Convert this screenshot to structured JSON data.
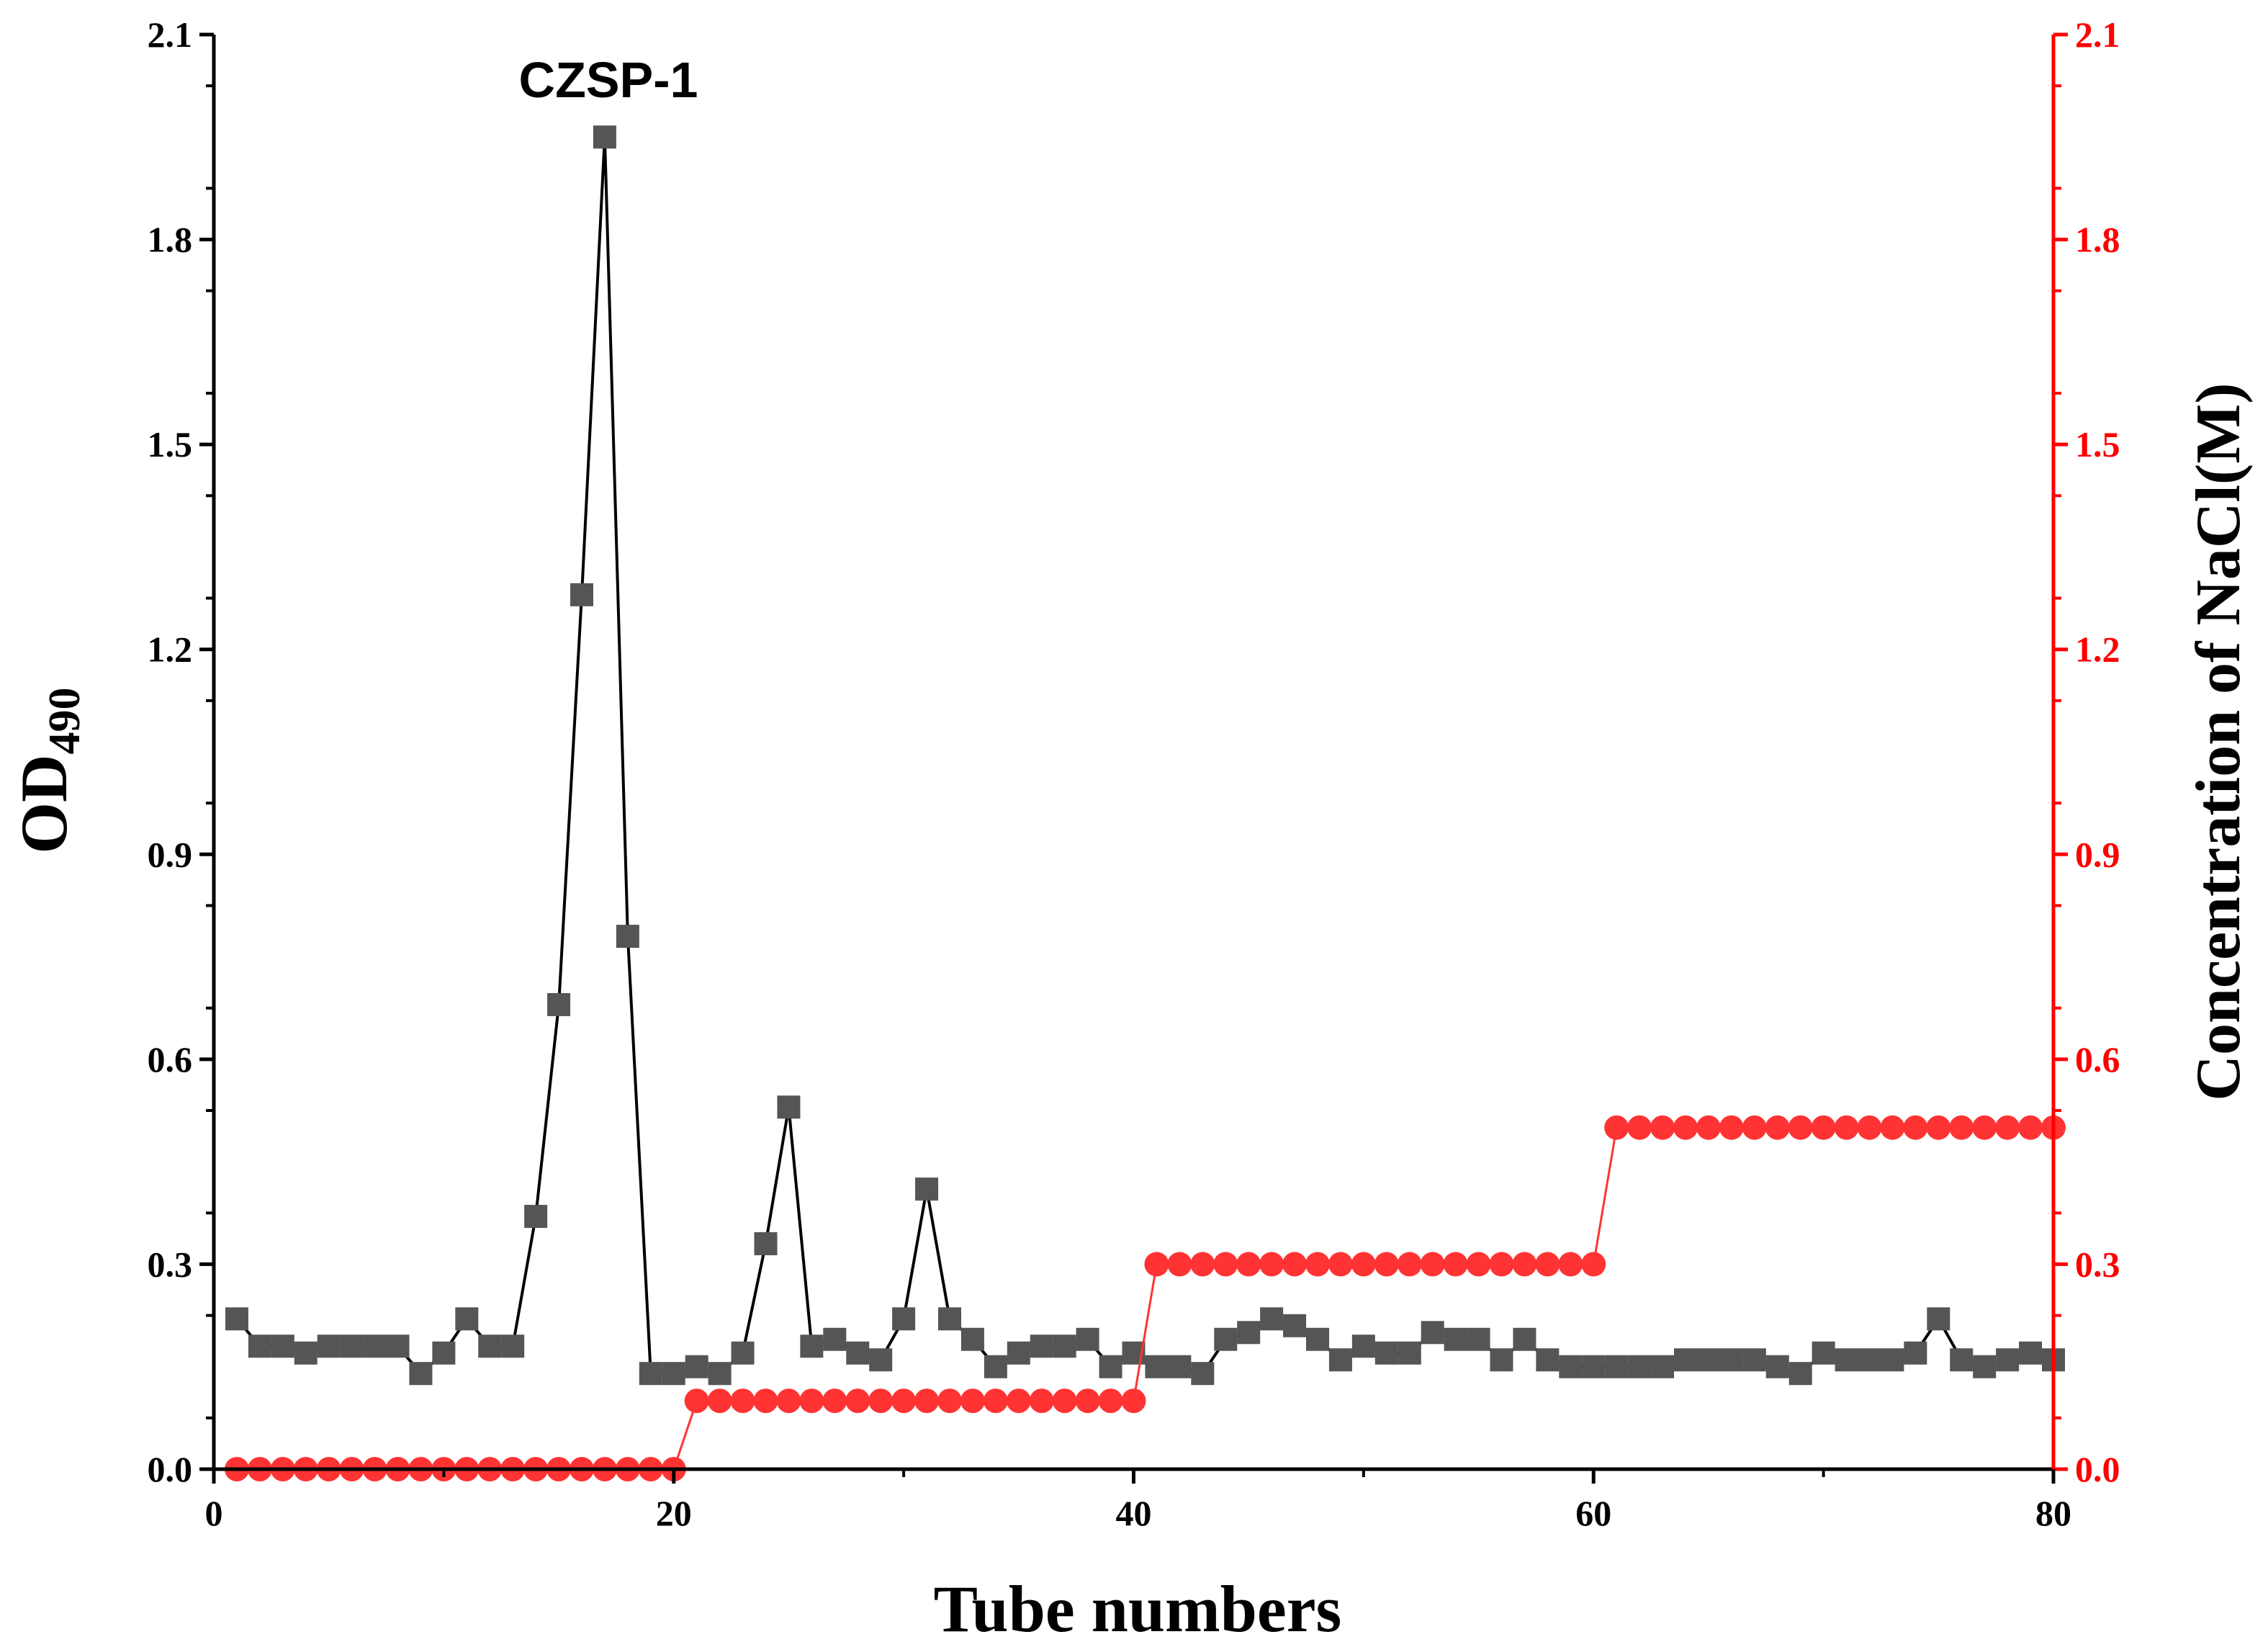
{
  "chart_data": {
    "type": "line",
    "xlabel": "Tube numbers",
    "ylabel": {
      "main": "OD",
      "sub": "490"
    },
    "y2label": "Concentration of NaCl(M)",
    "annotation": "CZSP-1",
    "xlim": [
      0,
      80
    ],
    "ylim": [
      0,
      2.1
    ],
    "y2lim": [
      0,
      2.1
    ],
    "x_ticks": [
      "0",
      "20",
      "40",
      "60",
      "80"
    ],
    "y_ticks": [
      "0.0",
      "0.3",
      "0.6",
      "0.9",
      "1.2",
      "1.5",
      "1.8",
      "2.1"
    ],
    "y2_ticks": [
      "0.0",
      "0.3",
      "0.6",
      "0.9",
      "1.2",
      "1.5",
      "1.8",
      "2.1"
    ],
    "colors": {
      "od": "#555555",
      "od_line": "#000000",
      "nacl": "#ff3333",
      "nacl_axis": "#ff0000",
      "axis": "#000000"
    },
    "series": [
      {
        "axis": "left",
        "marker": "square",
        "x": [
          1,
          2,
          3,
          4,
          5,
          6,
          7,
          8,
          9,
          10,
          11,
          12,
          13,
          14,
          15,
          16,
          17,
          18,
          19,
          20,
          21,
          22,
          23,
          24,
          25,
          26,
          27,
          28,
          29,
          30,
          31,
          32,
          33,
          34,
          35,
          36,
          37,
          38,
          39,
          40,
          41,
          42,
          43,
          44,
          45,
          46,
          47,
          48,
          49,
          50,
          51,
          52,
          53,
          54,
          55,
          56,
          57,
          58,
          59,
          60,
          61,
          62,
          63,
          64,
          65,
          66,
          67,
          68,
          69,
          70,
          71,
          72,
          73,
          74,
          75,
          76,
          77,
          78,
          79,
          80
        ],
        "y": [
          0.22,
          0.18,
          0.18,
          0.17,
          0.18,
          0.18,
          0.18,
          0.18,
          0.14,
          0.17,
          0.22,
          0.18,
          0.18,
          0.37,
          0.68,
          1.28,
          1.95,
          0.78,
          0.14,
          0.14,
          0.15,
          0.14,
          0.17,
          0.33,
          0.53,
          0.18,
          0.19,
          0.17,
          0.16,
          0.22,
          0.41,
          0.22,
          0.19,
          0.15,
          0.17,
          0.18,
          0.18,
          0.19,
          0.15,
          0.17,
          0.15,
          0.15,
          0.14,
          0.19,
          0.2,
          0.22,
          0.21,
          0.19,
          0.16,
          0.18,
          0.17,
          0.17,
          0.2,
          0.19,
          0.19,
          0.16,
          0.19,
          0.16,
          0.15,
          0.15,
          0.15,
          0.15,
          0.15,
          0.16,
          0.16,
          0.16,
          0.16,
          0.15,
          0.14,
          0.17,
          0.16,
          0.16,
          0.16,
          0.17,
          0.22,
          0.16,
          0.15,
          0.16,
          0.17,
          0.16
        ]
      },
      {
        "axis": "right",
        "marker": "circle",
        "x": [
          1,
          2,
          3,
          4,
          5,
          6,
          7,
          8,
          9,
          10,
          11,
          12,
          13,
          14,
          15,
          16,
          17,
          18,
          19,
          20,
          21,
          22,
          23,
          24,
          25,
          26,
          27,
          28,
          29,
          30,
          31,
          32,
          33,
          34,
          35,
          36,
          37,
          38,
          39,
          40,
          41,
          42,
          43,
          44,
          45,
          46,
          47,
          48,
          49,
          50,
          51,
          52,
          53,
          54,
          55,
          56,
          57,
          58,
          59,
          60,
          61,
          62,
          63,
          64,
          65,
          66,
          67,
          68,
          69,
          70,
          71,
          72,
          73,
          74,
          75,
          76,
          77,
          78,
          79,
          80
        ],
        "y": [
          0,
          0,
          0,
          0,
          0,
          0,
          0,
          0,
          0,
          0,
          0,
          0,
          0,
          0,
          0,
          0,
          0,
          0,
          0,
          0,
          0.1,
          0.1,
          0.1,
          0.1,
          0.1,
          0.1,
          0.1,
          0.1,
          0.1,
          0.1,
          0.1,
          0.1,
          0.1,
          0.1,
          0.1,
          0.1,
          0.1,
          0.1,
          0.1,
          0.1,
          0.3,
          0.3,
          0.3,
          0.3,
          0.3,
          0.3,
          0.3,
          0.3,
          0.3,
          0.3,
          0.3,
          0.3,
          0.3,
          0.3,
          0.3,
          0.3,
          0.3,
          0.3,
          0.3,
          0.3,
          0.5,
          0.5,
          0.5,
          0.5,
          0.5,
          0.5,
          0.5,
          0.5,
          0.5,
          0.5,
          0.5,
          0.5,
          0.5,
          0.5,
          0.5,
          0.5,
          0.5,
          0.5,
          0.5,
          0.5
        ]
      }
    ]
  }
}
